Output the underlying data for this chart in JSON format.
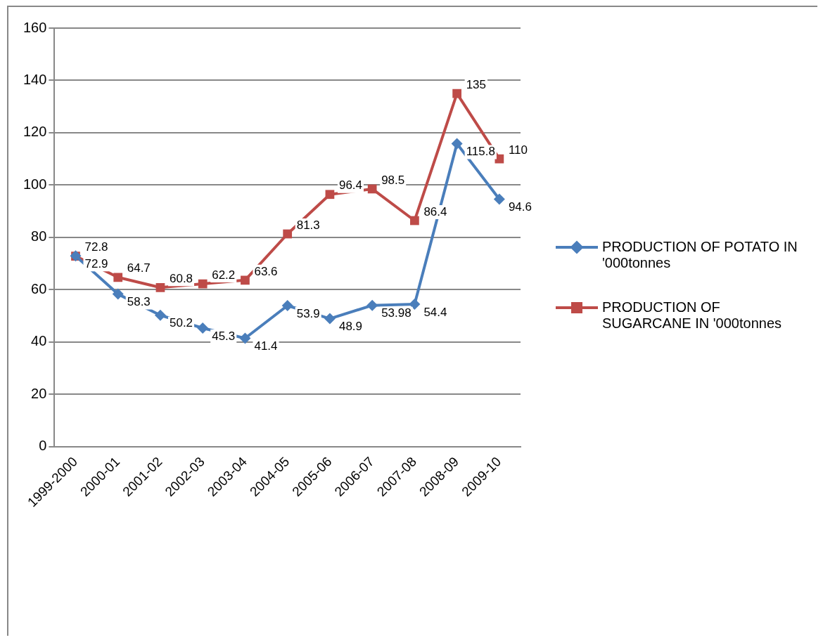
{
  "chart_data": {
    "type": "line",
    "categories": [
      "1999-2000",
      "2000-01",
      "2001-02",
      "2002-03",
      "2003-04",
      "2004-05",
      "2005-06",
      "2006-07",
      "2007-08",
      "2008-09",
      "2009-10"
    ],
    "series": [
      {
        "name": "PRODUCTION OF POTATO IN '000tonnes",
        "color": "#4a7ebb",
        "marker": "diamond",
        "values": [
          72.9,
          58.3,
          50.2,
          45.3,
          41.4,
          53.9,
          48.9,
          53.98,
          54.4,
          115.8,
          94.6
        ]
      },
      {
        "name": "PRODUCTION OF SUGARCANE IN '000tonnes",
        "color": "#be4b48",
        "marker": "square",
        "values": [
          72.8,
          64.7,
          60.8,
          62.2,
          63.6,
          81.3,
          96.4,
          98.5,
          86.4,
          135,
          110
        ]
      }
    ],
    "ylim": [
      0,
      160
    ],
    "yticks": [
      0,
      20,
      40,
      60,
      80,
      100,
      120,
      140,
      160
    ],
    "grid": "y",
    "legend": "right",
    "data_labels": true,
    "line_style": "solid"
  }
}
